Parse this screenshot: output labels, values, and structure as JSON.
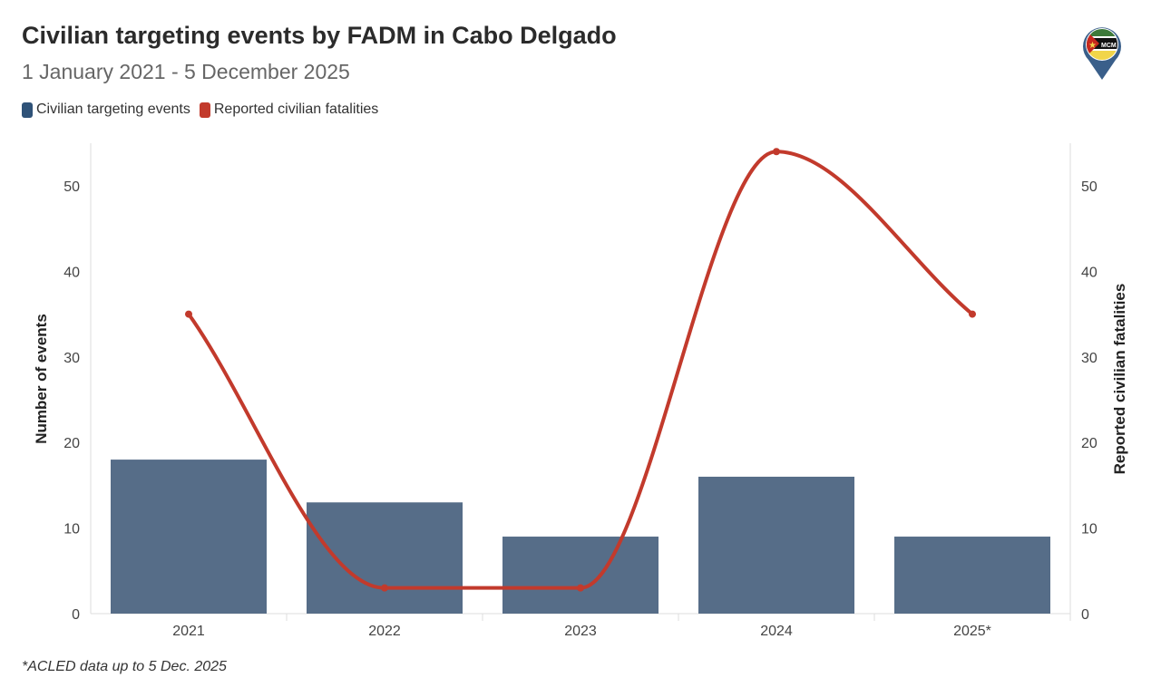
{
  "header": {
    "title": "Civilian targeting events by FADM in Cabo Delgado",
    "subtitle": "1 January 2021 - 5 December 2025"
  },
  "logo": {
    "text": "MCM"
  },
  "footnote": "*ACLED data up to 5 Dec. 2025",
  "colors": {
    "bars": "#566d88",
    "bars_legend": "#2f5278",
    "line": "#c23a2c"
  },
  "chart_data": {
    "type": "bar+line",
    "title": "Civilian targeting events by FADM in Cabo Delgado",
    "subtitle": "1 January 2021 - 5 December 2025",
    "categories": [
      "2021",
      "2022",
      "2023",
      "2024",
      "2025*"
    ],
    "series": [
      {
        "name": "Civilian targeting events",
        "type": "bar",
        "axis": "left",
        "values": [
          18,
          13,
          9,
          16,
          9
        ]
      },
      {
        "name": "Reported civilian fatalities",
        "type": "line",
        "axis": "right",
        "values": [
          35,
          3,
          3,
          54,
          35
        ]
      }
    ],
    "ylabel": "Number of events",
    "y2label": "Reported civilian fatalities",
    "ylim": [
      0,
      55
    ],
    "y2lim": [
      0,
      55
    ],
    "yticks": [
      "0",
      "10",
      "20",
      "30",
      "40",
      "50"
    ],
    "legend": "top-left",
    "grid": false
  }
}
